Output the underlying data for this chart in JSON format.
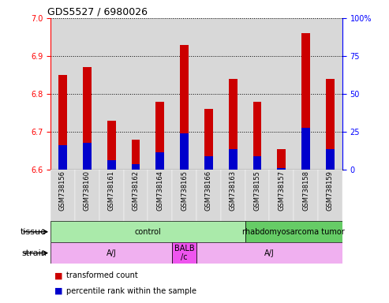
{
  "title": "GDS5527 / 6980026",
  "samples": [
    "GSM738156",
    "GSM738160",
    "GSM738161",
    "GSM738162",
    "GSM738164",
    "GSM738165",
    "GSM738166",
    "GSM738163",
    "GSM738155",
    "GSM738157",
    "GSM738158",
    "GSM738159"
  ],
  "red_values": [
    6.85,
    6.87,
    6.73,
    6.68,
    6.78,
    6.93,
    6.76,
    6.84,
    6.78,
    6.655,
    6.96,
    6.84
  ],
  "blue_values": [
    6.665,
    6.67,
    6.625,
    6.615,
    6.645,
    6.695,
    6.635,
    6.655,
    6.635,
    6.605,
    6.71,
    6.655
  ],
  "ymin": 6.6,
  "ymax": 7.0,
  "yticks": [
    6.6,
    6.7,
    6.8,
    6.9,
    7.0
  ],
  "y2ticks_val": [
    6.6,
    6.7,
    6.8,
    6.9,
    7.0
  ],
  "y2ticks_label": [
    "0",
    "25",
    "50",
    "75",
    "100%"
  ],
  "tissue_groups": [
    {
      "label": "control",
      "start": 0,
      "end": 8,
      "color": "#aaeaaa"
    },
    {
      "label": "rhabdomyosarcoma tumor",
      "start": 8,
      "end": 12,
      "color": "#66cc66"
    }
  ],
  "strain_groups": [
    {
      "label": "A/J",
      "start": 0,
      "end": 5,
      "color": "#f0b0f0"
    },
    {
      "label": "BALB\n/c",
      "start": 5,
      "end": 6,
      "color": "#ee55ee"
    },
    {
      "label": "A/J",
      "start": 6,
      "end": 12,
      "color": "#f0b0f0"
    }
  ],
  "red_color": "#cc0000",
  "blue_color": "#0000cc",
  "bar_width": 0.35,
  "base_value": 6.6,
  "cell_color": "#d8d8d8",
  "title_fontsize": 9,
  "tick_label_fontsize": 6,
  "axis_label_fontsize": 7,
  "legend_fontsize": 7,
  "row_label_fontsize": 8
}
